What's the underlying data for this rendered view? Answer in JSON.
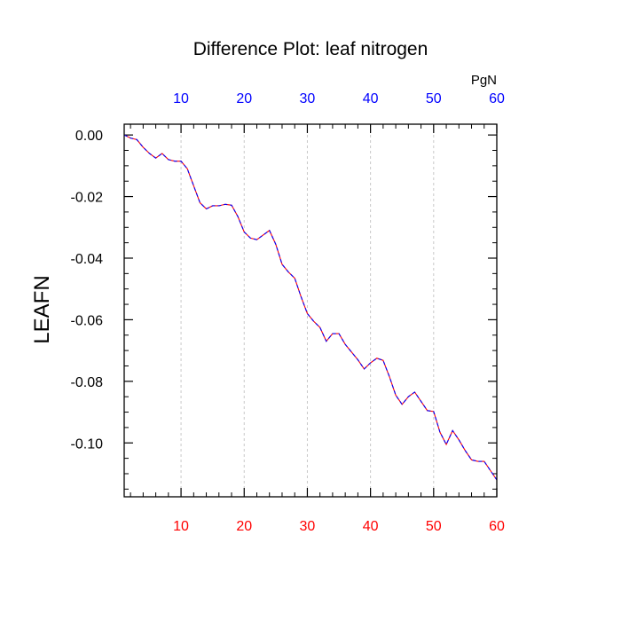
{
  "chart_data": {
    "type": "line",
    "title": "Difference Plot: leaf nitrogen",
    "ylabel": "LEAFN",
    "units": "PgN",
    "xlim": [
      1,
      60
    ],
    "ylim": [
      -0.1175,
      0.0035
    ],
    "x_ticks": [
      10,
      20,
      30,
      40,
      50,
      60
    ],
    "y_ticks": [
      0.0,
      -0.02,
      -0.04,
      -0.06,
      -0.08,
      -0.1
    ],
    "y_tick_labels": [
      "0.00",
      "-0.02",
      "-0.04",
      "-0.06",
      "-0.08",
      "-0.10"
    ],
    "grid": "vertical-dashed",
    "colors": {
      "bottom_axis_labels": "#ff0000",
      "top_axis_labels": "#0000ff",
      "series_a": "#ff0000",
      "series_b": "#0000ff",
      "gridlines": "#c8c8c8"
    },
    "series": [
      {
        "x": [
          1,
          2,
          3,
          4,
          5,
          6,
          7,
          8,
          9,
          10,
          11,
          12,
          13,
          14,
          15,
          16,
          17,
          18,
          19,
          20,
          21,
          22,
          23,
          24,
          25,
          26,
          27,
          28,
          29,
          30,
          31,
          32,
          33,
          34,
          35,
          36,
          37,
          38,
          39,
          40,
          41,
          42,
          43,
          44,
          45,
          46,
          47,
          48,
          49,
          50,
          51,
          52,
          53,
          54,
          55,
          56,
          57,
          58,
          59,
          60
        ],
        "values": [
          0.0,
          -0.001,
          -0.0015,
          -0.004,
          -0.006,
          -0.0075,
          -0.006,
          -0.008,
          -0.0085,
          -0.0085,
          -0.011,
          -0.0165,
          -0.022,
          -0.024,
          -0.023,
          -0.023,
          -0.0225,
          -0.0228,
          -0.0265,
          -0.0315,
          -0.0335,
          -0.034,
          -0.0325,
          -0.031,
          -0.0355,
          -0.042,
          -0.0445,
          -0.0465,
          -0.0525,
          -0.058,
          -0.0605,
          -0.0625,
          -0.067,
          -0.0645,
          -0.0645,
          -0.068,
          -0.0705,
          -0.073,
          -0.076,
          -0.074,
          -0.0725,
          -0.0732,
          -0.0785,
          -0.0845,
          -0.0875,
          -0.085,
          -0.0835,
          -0.0865,
          -0.0895,
          -0.0898,
          -0.0965,
          -0.1005,
          -0.096,
          -0.099,
          -0.1025,
          -0.1055,
          -0.106,
          -0.106,
          -0.109,
          -0.112
        ]
      }
    ]
  }
}
